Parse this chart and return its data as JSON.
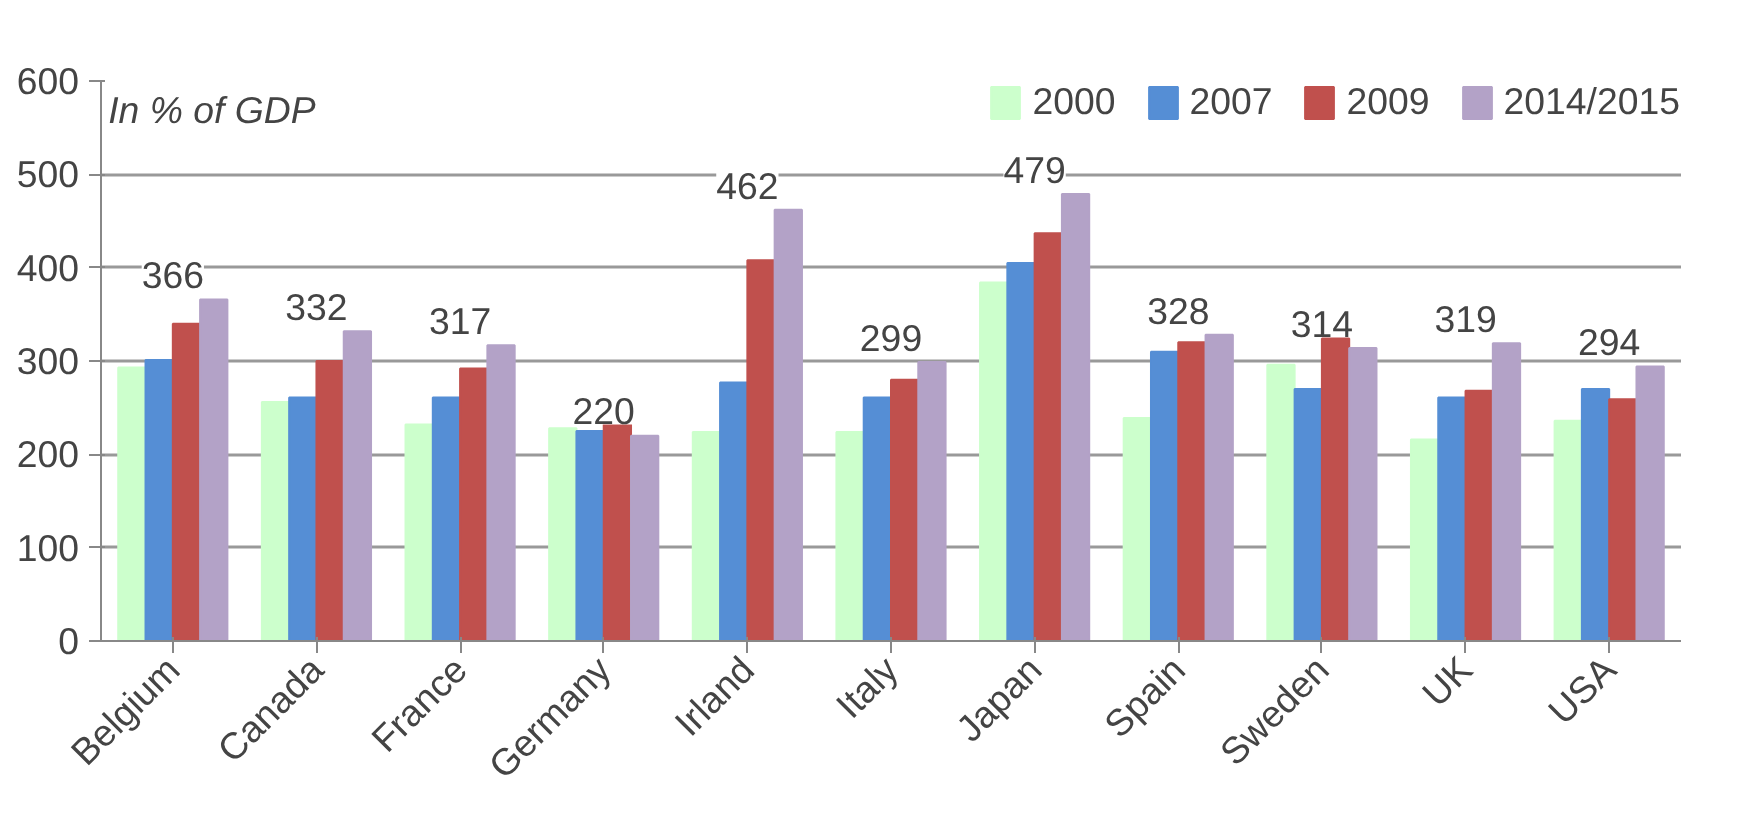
{
  "chart_data": {
    "type": "bar",
    "annotations": [
      "In % of GDP"
    ],
    "categories": [
      "Belgium",
      "Canada",
      "France",
      "Germany",
      "Irland",
      "Italy",
      "Japan",
      "Spain",
      "Sweden",
      "UK",
      "USA"
    ],
    "series": [
      {
        "name": "2000",
        "color": "#ccffcc",
        "values": [
          293,
          256,
          232,
          228,
          224,
          224,
          384,
          239,
          296,
          216,
          236
        ]
      },
      {
        "name": "2007",
        "color": "#558ed5",
        "values": [
          301,
          261,
          261,
          225,
          277,
          261,
          405,
          310,
          270,
          261,
          270
        ]
      },
      {
        "name": "2009",
        "color": "#c0504d",
        "values": [
          340,
          300,
          292,
          233,
          408,
          280,
          437,
          320,
          324,
          268,
          259
        ]
      },
      {
        "name": "2014/2015",
        "color": "#b3a2c7",
        "values": [
          366,
          332,
          317,
          220,
          462,
          299,
          479,
          328,
          314,
          319,
          294
        ],
        "value_labels": [
          "366",
          "332",
          "317",
          "220",
          "462",
          "299",
          "479",
          "328",
          "314",
          "319",
          "294"
        ]
      }
    ],
    "ylim": [
      0,
      600
    ],
    "yticks": [
      0,
      100,
      200,
      300,
      400,
      500,
      600
    ],
    "grid": "y",
    "legend": "top right"
  }
}
